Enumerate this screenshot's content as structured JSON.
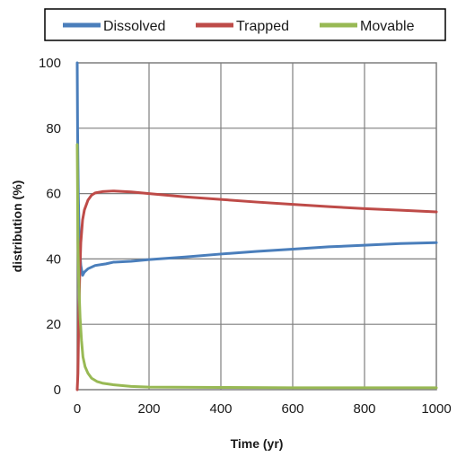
{
  "chart_data": {
    "type": "line",
    "title": "",
    "xlabel": "Time (yr)",
    "ylabel": "distribution (%)",
    "xlim": [
      0,
      1000
    ],
    "ylim": [
      0,
      100
    ],
    "x_ticks": [
      "0",
      "200",
      "400",
      "600",
      "800",
      "1000"
    ],
    "y_ticks": [
      "0",
      "20",
      "40",
      "60",
      "80",
      "100"
    ],
    "grid": true,
    "legend_position": "top",
    "series": [
      {
        "name": "Dissolved",
        "color": "#4a7ebb",
        "x": [
          0,
          1,
          3,
          6,
          10,
          15,
          20,
          30,
          50,
          80,
          100,
          150,
          200,
          300,
          400,
          500,
          600,
          700,
          800,
          900,
          1000
        ],
        "y": [
          100,
          80,
          60,
          45,
          38,
          35,
          36,
          37,
          38,
          38.5,
          39,
          39.3,
          39.8,
          40.6,
          41.5,
          42.3,
          43,
          43.7,
          44.2,
          44.7,
          45
        ]
      },
      {
        "name": "Trapped",
        "color": "#be4b48",
        "x": [
          0,
          2,
          4,
          7,
          10,
          15,
          20,
          30,
          40,
          50,
          70,
          100,
          150,
          200,
          300,
          400,
          500,
          600,
          700,
          800,
          900,
          1000
        ],
        "y": [
          0,
          5,
          20,
          35,
          45,
          52,
          55,
          58,
          59.5,
          60.2,
          60.6,
          60.8,
          60.5,
          60,
          59,
          58.2,
          57.4,
          56.7,
          56,
          55.4,
          54.9,
          54.4
        ]
      },
      {
        "name": "Movable",
        "color": "#98b954",
        "x": [
          0,
          1,
          2,
          4,
          6,
          8,
          12,
          16,
          22,
          30,
          40,
          55,
          70,
          100,
          150,
          200,
          400,
          600,
          800,
          1000
        ],
        "y": [
          75,
          60,
          45,
          35,
          28,
          22,
          15,
          10,
          7,
          5,
          3.5,
          2.5,
          2,
          1.5,
          1,
          0.8,
          0.7,
          0.6,
          0.6,
          0.6
        ]
      }
    ]
  }
}
